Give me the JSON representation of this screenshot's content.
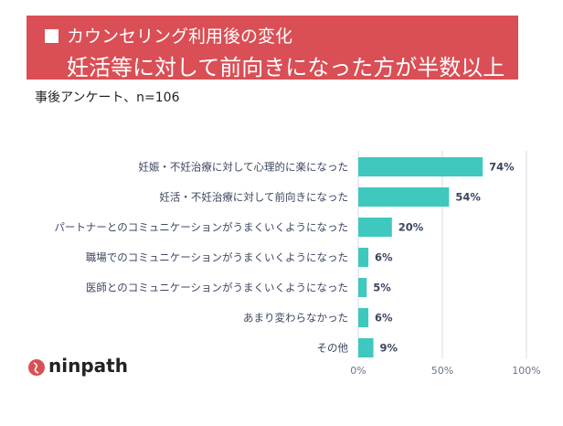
{
  "banner": {
    "line1": "カウンセリング利用後の変化",
    "line2": "妊活等に対して前向きになった方が半数以上"
  },
  "survey_note": "事後アンケート、n=106",
  "brand": {
    "name": "ninpath"
  },
  "colors": {
    "banner": "#d94f55",
    "bar": "#3fc8be",
    "grid": "#d5dbe6",
    "label": "#3c4660"
  },
  "chart_data": {
    "type": "bar",
    "orientation": "horizontal",
    "title": "",
    "xlabel": "",
    "ylabel": "",
    "categories": [
      "妊娠・不妊治療に対して心理的に楽になった",
      "妊活・不妊治療に対して前向きになった",
      "パートナーとのコミュニケーションがうまくいくようになった",
      "職場でのコミュニケーションがうまくいくようになった",
      "医師とのコミュニケーションがうまくいくようになった",
      "あまり変わらなかった",
      "その他"
    ],
    "values": [
      74,
      54,
      20,
      6,
      5,
      6,
      9
    ],
    "value_labels": [
      "74%",
      "54%",
      "20%",
      "6%",
      "5%",
      "6%",
      "9%"
    ],
    "xlim": [
      0,
      100
    ],
    "x_ticks": [
      0,
      50,
      100
    ],
    "x_tick_labels": [
      "0%",
      "50%",
      "100%"
    ],
    "grid": true,
    "legend": "none"
  }
}
